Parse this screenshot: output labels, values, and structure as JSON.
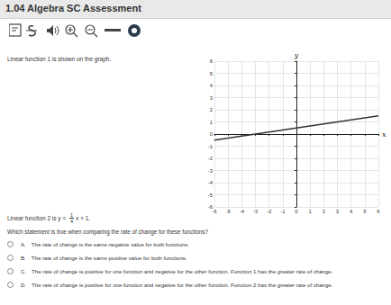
{
  "header": {
    "title": "1.04 Algebra SC Assessment"
  },
  "prompt": "Linear function 1 is shown on the graph.",
  "chart_data": {
    "type": "line",
    "x": [
      -6,
      6
    ],
    "values": [
      -0.5,
      1.5
    ],
    "color": "#333333",
    "xlim": [
      -6,
      6
    ],
    "ylim": [
      -6,
      6
    ],
    "xticks": [
      -6,
      -5,
      -4,
      -3,
      -2,
      -1,
      0,
      1,
      2,
      3,
      4,
      5,
      6
    ],
    "yticks": [
      -6,
      -5,
      -4,
      -3,
      -2,
      -1,
      0,
      1,
      2,
      3,
      4,
      5,
      6
    ],
    "x_label": "x",
    "y_label": "y",
    "grid": true
  },
  "function2": {
    "prefix": "Linear function 2 is y =",
    "numerator": "1",
    "denominator": "4",
    "suffix": "x + 1."
  },
  "question": "Which statement is true when comparing the rate of change for these functions?",
  "options": [
    {
      "letter": "A.",
      "text": "The rate of change is the same negative value for both functions."
    },
    {
      "letter": "B.",
      "text": "The rate of change is the same positive value for both functions."
    },
    {
      "letter": "C.",
      "text": "The rate of change is positive for one function and negative for the other function. Function 1 has the greater rate of change."
    },
    {
      "letter": "D.",
      "text": "The rate of change is positive for one function and negative for the other function. Function 2 has the greater rate of change."
    }
  ]
}
